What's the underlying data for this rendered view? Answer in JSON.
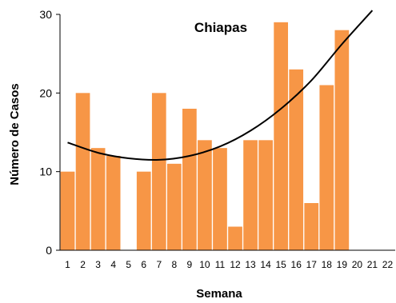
{
  "chart_data": {
    "type": "bar",
    "title": "Chiapas",
    "xlabel": "Semana",
    "ylabel": "Número de Casos",
    "categories": [
      "1",
      "2",
      "3",
      "4",
      "5",
      "6",
      "7",
      "8",
      "9",
      "10",
      "11",
      "12",
      "13",
      "14",
      "15",
      "16",
      "17",
      "18",
      "19",
      "20",
      "21",
      "22"
    ],
    "values": [
      10,
      20,
      13,
      12,
      0,
      10,
      20,
      11,
      18,
      14,
      13,
      3,
      14,
      14,
      29,
      23,
      6,
      21,
      28,
      0,
      0,
      0
    ],
    "ylim": [
      0,
      30
    ],
    "yticks": [
      0,
      10,
      20,
      30
    ],
    "trendline": {
      "type": "polynomial",
      "points": [
        [
          1,
          13.7
        ],
        [
          3,
          12.4
        ],
        [
          5,
          11.7
        ],
        [
          7,
          11.5
        ],
        [
          9,
          12.0
        ],
        [
          11,
          13.2
        ],
        [
          13,
          15.2
        ],
        [
          15,
          18.0
        ],
        [
          17,
          21.6
        ],
        [
          19,
          26.2
        ],
        [
          21,
          30.5
        ]
      ]
    },
    "grid": false,
    "legend": "none",
    "colors": {
      "bar": "#f79646",
      "trend": "#000000",
      "axis": "#000000"
    }
  }
}
